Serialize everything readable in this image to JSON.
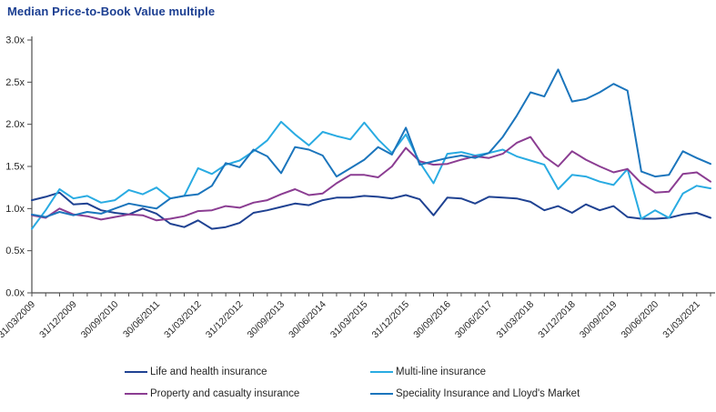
{
  "title": "Median Price-to-Book Value multiple",
  "colors": {
    "title_blue": "#1b3e91",
    "axis": "#4d4d4d",
    "tick_text": "#262626"
  },
  "chart_data": {
    "type": "line",
    "title": "Median Price-to-Book Value multiple",
    "xlabel": "",
    "ylabel": "",
    "ylim": [
      0.0,
      3.0
    ],
    "ytick_step": 0.5,
    "y_ticks": [
      "0.0x",
      "0.5x",
      "1.0x",
      "1.5x",
      "2.0x",
      "2.5x",
      "3.0x"
    ],
    "grid": false,
    "legend_position": "bottom",
    "x_label_every": 3,
    "x": [
      "31/03/2009",
      "30/06/2009",
      "30/09/2009",
      "31/12/2009",
      "31/03/2010",
      "30/06/2010",
      "30/09/2010",
      "31/12/2010",
      "31/03/2011",
      "30/06/2011",
      "30/09/2011",
      "31/12/2011",
      "31/03/2012",
      "30/06/2012",
      "30/09/2012",
      "31/12/2012",
      "31/03/2013",
      "30/06/2013",
      "30/09/2013",
      "31/12/2013",
      "31/03/2014",
      "30/06/2014",
      "30/09/2014",
      "31/12/2014",
      "31/03/2015",
      "30/06/2015",
      "30/09/2015",
      "31/12/2015",
      "31/03/2016",
      "30/06/2016",
      "30/09/2016",
      "31/12/2016",
      "31/03/2017",
      "30/06/2017",
      "30/09/2017",
      "31/12/2017",
      "31/03/2018",
      "30/06/2018",
      "30/09/2018",
      "31/12/2018",
      "31/03/2019",
      "30/06/2019",
      "30/09/2019",
      "31/12/2019",
      "31/03/2020",
      "30/06/2020",
      "30/09/2020",
      "31/12/2020",
      "31/03/2021",
      "30/06/2021"
    ],
    "x_tick_labels_shown": [
      "31/03/2009",
      "31/12/2009",
      "30/09/2010",
      "30/06/2011",
      "31/03/2012",
      "31/12/2012",
      "30/09/2013",
      "30/06/2014",
      "31/03/2015",
      "31/12/2015",
      "30/09/2016",
      "30/06/2017",
      "31/03/2018",
      "31/12/2018",
      "30/09/2019",
      "30/06/2020",
      "31/03/2021"
    ],
    "series": [
      {
        "name": "Life and health insurance",
        "color": "#1f4292",
        "values": [
          1.1,
          1.14,
          1.19,
          1.05,
          1.06,
          0.98,
          0.95,
          0.93,
          1.0,
          0.94,
          0.82,
          0.78,
          0.86,
          0.76,
          0.78,
          0.83,
          0.95,
          0.98,
          1.02,
          1.06,
          1.04,
          1.1,
          1.13,
          1.13,
          1.15,
          1.14,
          1.12,
          1.16,
          1.11,
          0.92,
          1.13,
          1.12,
          1.06,
          1.14,
          1.13,
          1.12,
          1.08,
          0.98,
          1.03,
          0.95,
          1.05,
          0.98,
          1.03,
          0.9,
          0.88,
          0.88,
          0.89,
          0.93,
          0.95,
          0.89
        ]
      },
      {
        "name": "Multi-line insurance",
        "color": "#29abe2",
        "values": [
          0.76,
          0.98,
          1.23,
          1.12,
          1.15,
          1.07,
          1.1,
          1.22,
          1.17,
          1.25,
          1.12,
          1.15,
          1.48,
          1.41,
          1.52,
          1.57,
          1.68,
          1.81,
          2.03,
          1.88,
          1.75,
          1.91,
          1.86,
          1.82,
          2.02,
          1.82,
          1.66,
          1.88,
          1.55,
          1.3,
          1.65,
          1.67,
          1.63,
          1.66,
          1.7,
          1.62,
          1.57,
          1.52,
          1.23,
          1.4,
          1.38,
          1.32,
          1.28,
          1.47,
          0.88,
          0.98,
          0.89,
          1.18,
          1.27,
          1.24
        ]
      },
      {
        "name": "Property and casualty insurance",
        "color": "#8b3d92",
        "values": [
          0.92,
          0.89,
          1.0,
          0.93,
          0.91,
          0.87,
          0.9,
          0.93,
          0.92,
          0.86,
          0.88,
          0.91,
          0.97,
          0.98,
          1.03,
          1.01,
          1.07,
          1.1,
          1.17,
          1.23,
          1.16,
          1.18,
          1.3,
          1.4,
          1.4,
          1.37,
          1.5,
          1.72,
          1.56,
          1.52,
          1.53,
          1.58,
          1.62,
          1.6,
          1.65,
          1.78,
          1.85,
          1.62,
          1.5,
          1.68,
          1.58,
          1.5,
          1.43,
          1.47,
          1.3,
          1.19,
          1.2,
          1.41,
          1.43,
          1.32
        ]
      },
      {
        "name": "Speciality Insurance and Lloyd's Market",
        "color": "#1b75bc",
        "values": [
          0.93,
          0.9,
          0.96,
          0.92,
          0.96,
          0.94,
          1.0,
          1.06,
          1.03,
          1.0,
          1.12,
          1.15,
          1.17,
          1.27,
          1.54,
          1.49,
          1.7,
          1.62,
          1.42,
          1.73,
          1.7,
          1.63,
          1.38,
          1.48,
          1.58,
          1.73,
          1.64,
          1.96,
          1.52,
          1.56,
          1.6,
          1.63,
          1.6,
          1.66,
          1.85,
          2.1,
          2.38,
          2.33,
          2.65,
          2.27,
          2.3,
          2.38,
          2.48,
          2.4,
          1.44,
          1.38,
          1.4,
          1.68,
          1.6,
          1.53
        ]
      }
    ]
  },
  "legend": {
    "items": [
      {
        "label": "Life and health insurance"
      },
      {
        "label": "Multi-line insurance"
      },
      {
        "label": "Property and casualty insurance"
      },
      {
        "label": "Speciality Insurance and Lloyd's Market"
      }
    ]
  }
}
